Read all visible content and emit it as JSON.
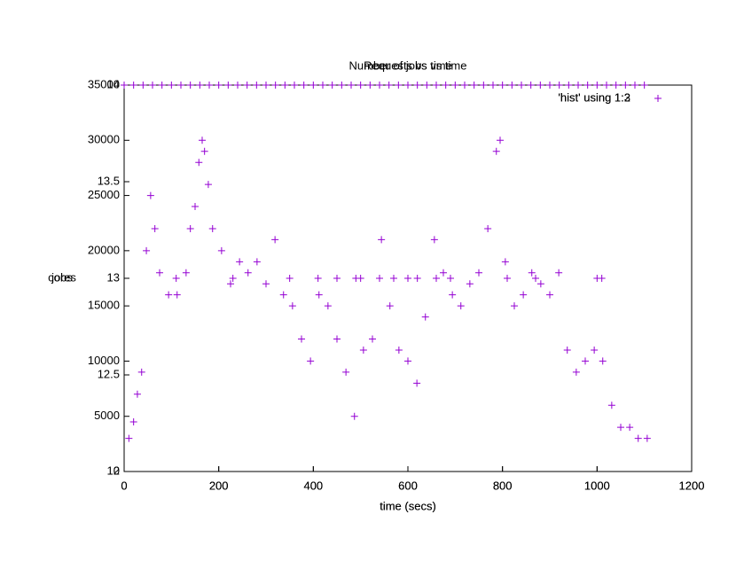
{
  "chart_data": [
    {
      "type": "scatter",
      "title": "Requests vs time",
      "xlabel": "time (secs)",
      "ylabel": "cores",
      "legend": "'hist' using 1:2",
      "legend_position": "upper right",
      "color": "#9400d3",
      "xlim": [
        0,
        1200
      ],
      "xticks": [
        0,
        200,
        400,
        600,
        800,
        1000,
        1200
      ],
      "ylim": [
        0,
        35000
      ],
      "yticks": [
        0,
        5000,
        10000,
        15000,
        20000,
        25000,
        30000,
        35000
      ],
      "x": [
        10,
        20,
        28,
        37,
        47,
        56,
        65,
        75,
        94,
        112,
        131,
        140,
        150,
        158,
        165,
        170,
        178,
        187,
        206,
        225,
        244,
        262,
        281,
        300,
        319,
        337,
        356,
        375,
        394,
        412,
        431,
        450,
        469,
        487,
        506,
        525,
        544,
        562,
        581,
        600,
        619,
        637,
        656,
        675,
        694,
        712,
        731,
        750,
        769,
        787,
        795,
        806,
        825,
        844,
        862,
        881,
        900,
        919,
        937,
        956,
        975,
        994,
        1012,
        1031,
        1050,
        1069,
        1087,
        1106
      ],
      "y": [
        3000,
        4500,
        7000,
        9000,
        20000,
        25000,
        22000,
        18000,
        16000,
        16000,
        18000,
        22000,
        24000,
        28000,
        30000,
        29000,
        26000,
        22000,
        20000,
        17000,
        19000,
        18000,
        19000,
        17000,
        21000,
        16000,
        15000,
        12000,
        10000,
        16000,
        15000,
        12000,
        9000,
        5000,
        11000,
        12000,
        21000,
        15000,
        11000,
        10000,
        8000,
        14000,
        21000,
        18000,
        16000,
        15000,
        17000,
        18000,
        22000,
        29000,
        30000,
        19000,
        15000,
        16000,
        18000,
        17000,
        16000,
        18000,
        11000,
        9000,
        10000,
        11000,
        10000,
        6000,
        4000,
        4000,
        3000,
        3000
      ]
    },
    {
      "type": "scatter",
      "title": "Number of jobs vs time",
      "xlabel": "time (secs)",
      "ylabel": "jobs",
      "legend": "'hist' using 1:3",
      "legend_position": "upper right",
      "color": "#9400d3",
      "xlim": [
        0,
        1200
      ],
      "xticks": [
        0,
        200,
        400,
        600,
        800,
        1000,
        1200
      ],
      "ylim": [
        12,
        14
      ],
      "yticks": [
        12,
        12.5,
        13,
        13.5,
        14
      ],
      "x": [
        0,
        20,
        40,
        60,
        80,
        100,
        120,
        140,
        160,
        180,
        200,
        220,
        240,
        260,
        280,
        300,
        320,
        340,
        360,
        380,
        400,
        420,
        440,
        460,
        480,
        500,
        520,
        540,
        560,
        580,
        600,
        620,
        640,
        660,
        680,
        700,
        720,
        740,
        760,
        780,
        800,
        820,
        840,
        860,
        880,
        900,
        920,
        940,
        960,
        980,
        1000,
        1020,
        1040,
        1060,
        1080,
        1100,
        110,
        230,
        350,
        410,
        450,
        490,
        500,
        540,
        570,
        600,
        620,
        660,
        690,
        810,
        870,
        1000,
        1010
      ],
      "y": [
        14,
        14,
        14,
        14,
        14,
        14,
        14,
        14,
        14,
        14,
        14,
        14,
        14,
        14,
        14,
        14,
        14,
        14,
        14,
        14,
        14,
        14,
        14,
        14,
        14,
        14,
        14,
        14,
        14,
        14,
        14,
        14,
        14,
        14,
        14,
        14,
        14,
        14,
        14,
        14,
        14,
        14,
        14,
        14,
        14,
        14,
        14,
        14,
        14,
        14,
        14,
        14,
        14,
        14,
        14,
        14,
        13,
        13,
        13,
        13,
        13,
        13,
        13,
        13,
        13,
        13,
        13,
        13,
        13,
        13,
        13,
        13,
        13
      ]
    }
  ]
}
